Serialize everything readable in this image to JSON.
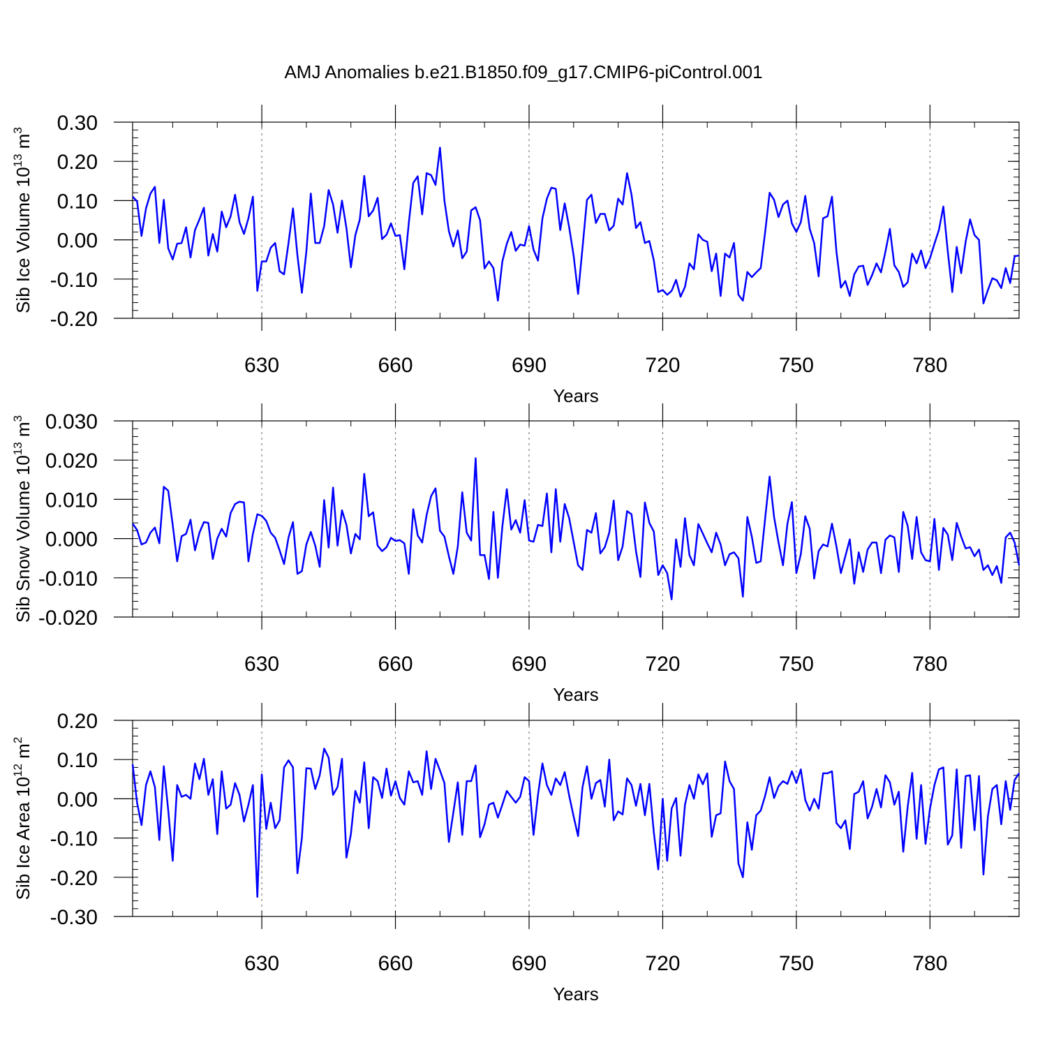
{
  "title": "AMJ Anomalies b.e21.B1850.f09_g17.CMIP6-piControl.001",
  "line_color": "#0000ff",
  "chart_data": [
    {
      "type": "line",
      "ylabel": "Sib Ice Volume 10",
      "ylabel_sup": "13",
      "ylabel_unit": "m",
      "ylabel_unit_sup": "3",
      "xlabel": "Years",
      "xlim": [
        601,
        800
      ],
      "ylim": [
        -0.2,
        0.3
      ],
      "yticks": [
        "0.30",
        "0.20",
        "0.10",
        "0.00",
        "-0.10",
        "-0.20"
      ],
      "ytick_values": [
        0.3,
        0.2,
        0.1,
        0.0,
        -0.1,
        -0.2
      ],
      "xticks": [
        "630",
        "660",
        "690",
        "720",
        "750",
        "780"
      ],
      "xtick_values": [
        630,
        660,
        690,
        720,
        750,
        780
      ],
      "x_start": 601,
      "values": [
        0.11,
        0.098,
        0.01,
        0.08,
        0.118,
        0.135,
        -0.008,
        0.102,
        -0.022,
        -0.05,
        -0.01,
        -0.008,
        0.032,
        -0.045,
        0.025,
        0.052,
        0.082,
        -0.04,
        0.015,
        -0.03,
        0.072,
        0.032,
        0.06,
        0.115,
        0.045,
        0.015,
        0.055,
        0.11,
        -0.13,
        -0.055,
        -0.055,
        -0.02,
        -0.008,
        -0.08,
        -0.088,
        -0.008,
        0.08,
        -0.04,
        -0.135,
        -0.03,
        0.118,
        -0.008,
        -0.008,
        0.035,
        0.127,
        0.09,
        0.018,
        0.1,
        0.03,
        -0.07,
        0.012,
        0.052,
        0.163,
        0.06,
        0.075,
        0.107,
        0.002,
        0.013,
        0.042,
        0.01,
        0.012,
        -0.075,
        0.043,
        0.145,
        0.162,
        0.065,
        0.17,
        0.165,
        0.14,
        0.235,
        0.1,
        0.022,
        -0.017,
        0.024,
        -0.047,
        -0.03,
        0.075,
        0.083,
        0.05,
        -0.073,
        -0.055,
        -0.072,
        -0.155,
        -0.055,
        -0.01,
        0.02,
        -0.028,
        -0.012,
        -0.015,
        0.035,
        -0.025,
        -0.053,
        0.055,
        0.105,
        0.133,
        0.13,
        0.025,
        0.093,
        0.032,
        -0.04,
        -0.138,
        -0.02,
        0.102,
        0.115,
        0.043,
        0.066,
        0.066,
        0.024,
        0.036,
        0.105,
        0.09,
        0.17,
        0.115,
        0.03,
        0.045,
        -0.008,
        -0.003,
        -0.052,
        -0.133,
        -0.128,
        -0.14,
        -0.13,
        -0.102,
        -0.145,
        -0.12,
        -0.06,
        -0.075,
        0.014,
        0.0,
        -0.005,
        -0.08,
        -0.035,
        -0.143,
        -0.035,
        -0.045,
        -0.008,
        -0.14,
        -0.155,
        -0.082,
        -0.095,
        -0.083,
        -0.072,
        0.02,
        0.12,
        0.102,
        0.058,
        0.09,
        0.1,
        0.042,
        0.02,
        0.045,
        0.112,
        0.028,
        -0.008,
        -0.093,
        0.055,
        0.06,
        0.11,
        -0.03,
        -0.122,
        -0.105,
        -0.143,
        -0.088,
        -0.068,
        -0.066,
        -0.115,
        -0.09,
        -0.06,
        -0.083,
        -0.03,
        0.028,
        -0.065,
        -0.082,
        -0.12,
        -0.108,
        -0.035,
        -0.06,
        -0.027,
        -0.072,
        -0.047,
        -0.01,
        0.025,
        0.085,
        -0.03,
        -0.133,
        -0.018,
        -0.085,
        -0.005,
        0.052,
        0.012,
        0.0,
        -0.162,
        -0.128,
        -0.098,
        -0.103,
        -0.123,
        -0.072,
        -0.11,
        -0.042,
        -0.04
      ]
    },
    {
      "type": "line",
      "ylabel": "Sib Snow Volume 10",
      "ylabel_sup": "13",
      "ylabel_unit": "m",
      "ylabel_unit_sup": "3",
      "xlabel": "Years",
      "xlim": [
        601,
        800
      ],
      "ylim": [
        -0.02,
        0.03
      ],
      "yticks": [
        "0.030",
        "0.020",
        "0.010",
        "0.000",
        "-0.010",
        "-0.020"
      ],
      "ytick_values": [
        0.03,
        0.02,
        0.01,
        0.0,
        -0.01,
        -0.02
      ],
      "xticks": [
        "630",
        "660",
        "690",
        "720",
        "750",
        "780"
      ],
      "xtick_values": [
        630,
        660,
        690,
        720,
        750,
        780
      ],
      "x_start": 601,
      "values": [
        0.0038,
        0.0022,
        -0.0015,
        -0.001,
        0.0015,
        0.0028,
        -0.0012,
        0.0132,
        0.0122,
        0.0035,
        -0.0058,
        0.0006,
        0.0012,
        0.0048,
        -0.003,
        0.0015,
        0.0042,
        0.004,
        -0.0052,
        0.0,
        0.0025,
        0.0005,
        0.0065,
        0.0088,
        0.0094,
        0.0092,
        -0.0058,
        0.0012,
        0.0062,
        0.0058,
        0.0045,
        0.0015,
        0.0002,
        -0.003,
        -0.0065,
        0.0003,
        0.0042,
        -0.009,
        -0.0083,
        -0.0015,
        0.0017,
        -0.0018,
        -0.0072,
        0.0098,
        -0.0023,
        0.013,
        -0.0018,
        0.0072,
        0.0035,
        -0.0038,
        0.0012,
        -0.0002,
        0.0165,
        0.0057,
        0.0067,
        -0.0018,
        -0.0032,
        -0.0022,
        0.0002,
        -0.0006,
        -0.0004,
        -0.0012,
        -0.009,
        0.0075,
        0.0008,
        -0.001,
        0.006,
        0.0108,
        0.0128,
        0.002,
        0.0005,
        -0.0045,
        -0.009,
        -0.002,
        0.0118,
        0.0015,
        -0.0005,
        0.0205,
        -0.0042,
        -0.0042,
        -0.0103,
        0.0068,
        -0.01,
        0.003,
        0.0126,
        0.0023,
        0.0047,
        0.0015,
        0.0098,
        -0.0005,
        -0.0008,
        0.0035,
        0.0032,
        0.0115,
        -0.0035,
        0.0126,
        -0.0008,
        0.0088,
        0.0052,
        -0.0008,
        -0.0068,
        -0.008,
        0.0022,
        0.0015,
        0.0065,
        -0.0038,
        -0.0022,
        0.0015,
        0.0097,
        -0.0055,
        -0.002,
        0.007,
        0.0062,
        -0.0032,
        -0.0098,
        0.0092,
        0.004,
        0.0018,
        -0.0093,
        -0.0068,
        -0.0088,
        -0.0155,
        -0.0002,
        -0.0072,
        0.0052,
        -0.0042,
        -0.0068,
        0.0037,
        0.0013,
        -0.0012,
        -0.0035,
        0.0015,
        -0.0015,
        -0.0068,
        -0.004,
        -0.0035,
        -0.005,
        -0.0148,
        0.0055,
        0.0005,
        -0.0062,
        -0.0058,
        0.0052,
        0.0158,
        0.0055,
        -0.001,
        -0.0068,
        0.0038,
        0.0093,
        -0.0088,
        -0.004,
        0.0057,
        0.0025,
        -0.0102,
        -0.0032,
        -0.0015,
        -0.002,
        0.0038,
        -0.002,
        -0.0088,
        -0.0045,
        -0.0002,
        -0.0115,
        -0.0035,
        -0.0085,
        -0.0028,
        -0.001,
        -0.001,
        -0.0088,
        -0.0003,
        0.0008,
        0.0003,
        -0.0085,
        0.0068,
        0.0032,
        -0.0052,
        0.0055,
        -0.0035,
        -0.0055,
        -0.0058,
        0.005,
        -0.008,
        0.0027,
        0.001,
        -0.0055,
        0.004,
        0.0005,
        -0.0025,
        -0.0022,
        -0.0045,
        -0.0028,
        -0.008,
        -0.0068,
        -0.0093,
        -0.007,
        -0.0113,
        0.0003,
        0.0015,
        -0.001,
        -0.0068
      ]
    },
    {
      "type": "line",
      "ylabel": "Sib Ice Area 10",
      "ylabel_sup": "12",
      "ylabel_unit": "m",
      "ylabel_unit_sup": "2",
      "xlabel": "Years",
      "xlim": [
        601,
        800
      ],
      "ylim": [
        -0.3,
        0.2
      ],
      "yticks": [
        "0.20",
        "0.10",
        "0.00",
        "-0.10",
        "-0.20",
        "-0.30"
      ],
      "ytick_values": [
        0.2,
        0.1,
        0.0,
        -0.1,
        -0.2,
        -0.3
      ],
      "xticks": [
        "630",
        "660",
        "690",
        "720",
        "750",
        "780"
      ],
      "xtick_values": [
        630,
        660,
        690,
        720,
        750,
        780
      ],
      "x_start": 601,
      "values": [
        0.088,
        -0.01,
        -0.067,
        0.035,
        0.07,
        0.03,
        -0.105,
        0.083,
        -0.03,
        -0.158,
        0.035,
        0.005,
        0.01,
        0.0,
        0.09,
        0.05,
        0.102,
        0.01,
        0.05,
        -0.09,
        0.07,
        -0.025,
        -0.015,
        0.04,
        0.01,
        -0.058,
        -0.015,
        0.035,
        -0.25,
        0.062,
        -0.077,
        -0.01,
        -0.075,
        -0.055,
        0.08,
        0.098,
        0.08,
        -0.19,
        -0.1,
        0.078,
        0.077,
        0.025,
        0.06,
        0.128,
        0.105,
        0.01,
        0.03,
        0.102,
        -0.15,
        -0.09,
        0.02,
        -0.01,
        0.093,
        -0.075,
        0.055,
        0.045,
        0.002,
        0.077,
        0.008,
        0.045,
        0.002,
        -0.015,
        0.07,
        0.042,
        0.045,
        0.01,
        0.121,
        0.025,
        0.102,
        0.072,
        0.04,
        -0.11,
        -0.035,
        0.042,
        -0.092,
        0.045,
        0.045,
        0.085,
        -0.098,
        -0.065,
        -0.015,
        -0.01,
        -0.048,
        -0.015,
        0.02,
        0.005,
        -0.01,
        0.005,
        0.055,
        0.045,
        -0.092,
        0.01,
        0.09,
        0.035,
        0.01,
        0.052,
        0.035,
        0.068,
        0.008,
        -0.045,
        -0.095,
        0.03,
        0.083,
        0.0,
        0.04,
        0.048,
        -0.02,
        0.1,
        -0.055,
        -0.032,
        -0.04,
        0.052,
        0.035,
        -0.018,
        0.038,
        -0.042,
        0.038,
        -0.085,
        -0.18,
        0.0,
        -0.158,
        -0.025,
        0.002,
        -0.145,
        -0.015,
        0.035,
        0.0,
        0.062,
        0.037,
        0.065,
        -0.097,
        -0.042,
        -0.037,
        0.095,
        0.045,
        0.025,
        -0.165,
        -0.2,
        -0.06,
        -0.13,
        -0.042,
        -0.03,
        0.008,
        0.055,
        0.002,
        0.032,
        0.045,
        0.038,
        0.07,
        0.04,
        0.075,
        -0.003,
        -0.03,
        0.0,
        -0.025,
        0.065,
        0.065,
        0.07,
        -0.062,
        -0.075,
        -0.055,
        -0.128,
        0.012,
        0.018,
        0.045,
        -0.05,
        -0.02,
        0.025,
        -0.022,
        0.06,
        0.042,
        -0.015,
        0.018,
        -0.135,
        -0.02,
        0.066,
        -0.102,
        0.035,
        -0.115,
        -0.025,
        0.035,
        0.075,
        0.08,
        -0.117,
        -0.093,
        0.075,
        -0.125,
        0.058,
        0.06,
        -0.08,
        0.058,
        -0.193,
        -0.045,
        0.025,
        0.035,
        -0.065,
        0.045,
        -0.028,
        0.048,
        0.065
      ]
    }
  ]
}
